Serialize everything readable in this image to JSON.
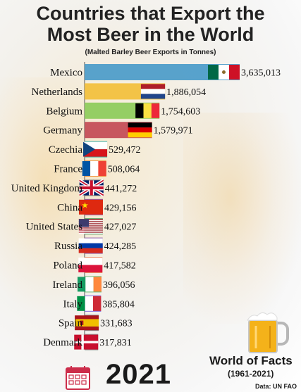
{
  "header": {
    "title_line1": "Countries that Export the",
    "title_line2": "Most Beer in the World",
    "subtitle": "(Malted Barley Beer Exports in Tonnes)"
  },
  "footer": {
    "year": "2021",
    "brand": "World of Facts",
    "brand_years": "(1961-2021)",
    "source": "Data: UN FAO"
  },
  "chart_data": {
    "type": "bar",
    "orientation": "horizontal",
    "title": "Countries that Export the Most Beer in the World",
    "subtitle": "(Malted Barley Beer Exports in Tonnes)",
    "categories": [
      "Mexico",
      "Netherlands",
      "Belgium",
      "Germany",
      "Czechia",
      "France",
      "United Kingdom",
      "China",
      "United States",
      "Russia",
      "Poland",
      "Ireland",
      "Italy",
      "Spain",
      "Denmark"
    ],
    "values": [
      3635013,
      1886054,
      1754603,
      1579971,
      529472,
      508064,
      441272,
      429156,
      427027,
      424285,
      417582,
      396056,
      385804,
      331683,
      317831
    ],
    "labels": [
      "3,635,013",
      "1,886,054",
      "1,754,603",
      "1,579,971",
      "529,472",
      "508,064",
      "441,272",
      "429,156",
      "427,027",
      "424,285",
      "417,582",
      "396,056",
      "385,804",
      "331,683",
      "317,831"
    ],
    "colors": [
      "#4a9bc9",
      "#f2bf3a",
      "#8ccb5a",
      "#c24a55",
      "#2ba89c",
      "#f0933a",
      "#6b6b6b",
      "#8a4fa6",
      "#3a8f4a",
      "#8b5ca8",
      "#e8875a",
      "#62b36a",
      "#7a5ad8",
      "#8a8a8a",
      "#8a8a8a"
    ],
    "flags": [
      "Mexico",
      "Netherlands",
      "Belgium",
      "Germany",
      "Czechia",
      "France",
      "United Kingdom",
      "China",
      "United States",
      "Russia",
      "Poland",
      "Ireland",
      "Italy",
      "Spain",
      "Denmark"
    ],
    "year": "2021",
    "grid": false,
    "legend": "none"
  }
}
